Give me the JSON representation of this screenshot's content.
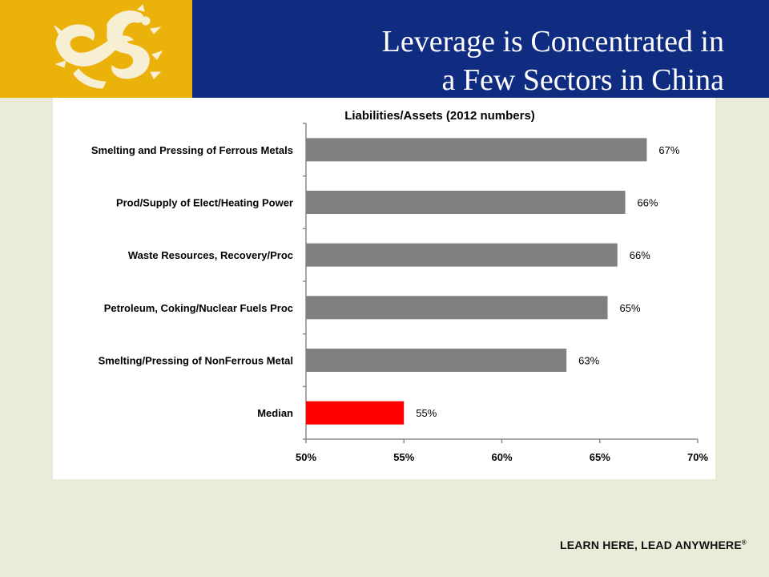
{
  "slide": {
    "title_line1": "Leverage is Concentrated in",
    "title_line2": "a Few Sectors in China",
    "tagline": "LEARN HERE, LEAD ANYWHERE",
    "tagline_mark": "®",
    "logo_icon": "dragon-logo-icon"
  },
  "colors": {
    "header_bg": "#0f2c80",
    "logo_bg": "#ecb20c",
    "bar_default": "#808080",
    "bar_highlight": "#ff0000"
  },
  "chart_data": {
    "type": "bar",
    "orientation": "horizontal",
    "title": "Liabilities/Assets (2012 numbers)",
    "categories": [
      "Smelting and Pressing of Ferrous Metals",
      "Prod/Supply of Elect/Heating Power",
      "Waste Resources, Recovery/Proc",
      "Petroleum, Coking/Nuclear Fuels Proc",
      "Smelting/Pressing of NonFerrous Metal",
      "Median"
    ],
    "values": [
      67.4,
      66.3,
      65.9,
      65.4,
      63.3,
      55.0
    ],
    "data_labels": [
      "67%",
      "66%",
      "66%",
      "65%",
      "63%",
      "55%"
    ],
    "highlight_category": "Median",
    "xlim": [
      50,
      70
    ],
    "x_ticks": [
      50,
      55,
      60,
      65,
      70
    ],
    "x_tick_labels": [
      "50%",
      "55%",
      "60%",
      "65%",
      "70%"
    ],
    "xlabel": "",
    "ylabel": "",
    "grid": false,
    "legend": "none"
  }
}
